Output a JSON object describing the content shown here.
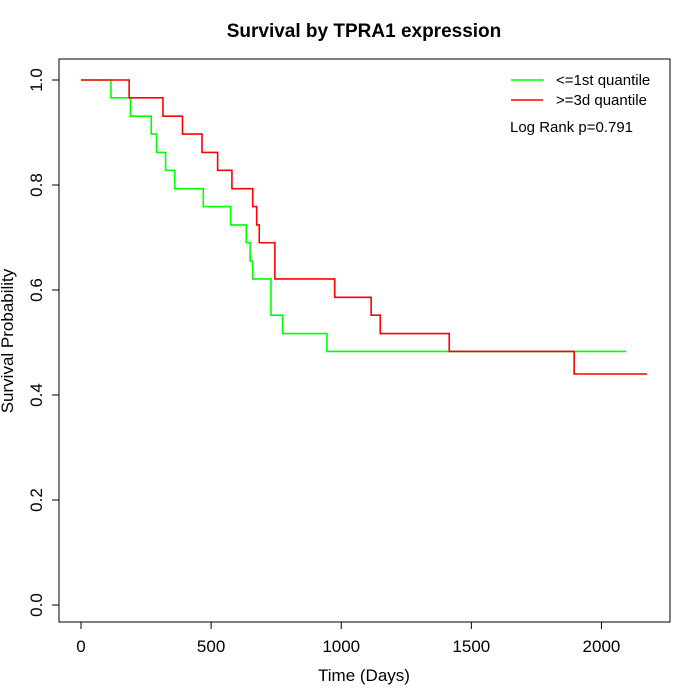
{
  "chart_data": {
    "type": "line",
    "step": true,
    "title": "Survival by TPRA1 expression",
    "xlabel": "Time (Days)",
    "ylabel": "Survival Probability",
    "xlim": [
      0,
      2200
    ],
    "ylim": [
      0,
      1
    ],
    "x_ticks": [
      0,
      500,
      1000,
      1500,
      2000
    ],
    "y_ticks": [
      0.0,
      0.2,
      0.4,
      0.6,
      0.8,
      1.0
    ],
    "y_tick_labels": [
      "0.0",
      "0.2",
      "0.4",
      "0.6",
      "0.8",
      "1.0"
    ],
    "grid": false,
    "legend_position": "top-right",
    "annotation": "Log Rank p=0.791",
    "series": [
      {
        "name": "<=1st quantile",
        "color": "#00ff00",
        "x": [
          0,
          115,
          190,
          270,
          290,
          325,
          360,
          470,
          575,
          635,
          650,
          660,
          730,
          775,
          945,
          2095
        ],
        "y": [
          1.0,
          0.966,
          0.931,
          0.897,
          0.862,
          0.828,
          0.793,
          0.759,
          0.724,
          0.69,
          0.655,
          0.621,
          0.552,
          0.517,
          0.483,
          0.483
        ]
      },
      {
        "name": ">=3d quantile",
        "color": "#ff0000",
        "x": [
          0,
          185,
          315,
          390,
          465,
          525,
          580,
          660,
          675,
          685,
          700,
          745,
          975,
          1115,
          1150,
          1415,
          1895,
          2175
        ],
        "y": [
          1.0,
          0.966,
          0.931,
          0.897,
          0.862,
          0.828,
          0.793,
          0.759,
          0.724,
          0.69,
          0.69,
          0.621,
          0.586,
          0.552,
          0.517,
          0.483,
          0.44,
          0.44
        ]
      }
    ]
  }
}
